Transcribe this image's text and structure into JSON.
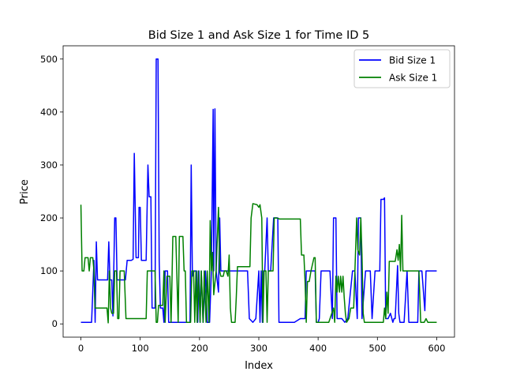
{
  "chart_data": {
    "type": "line",
    "title": "Bid Size 1 and Ask Size 1 for Time ID 5",
    "xlabel": "Index",
    "ylabel": "Price",
    "xlim": [
      -30,
      630
    ],
    "ylim": [
      -25,
      525
    ],
    "xticks": [
      0,
      100,
      200,
      300,
      400,
      500,
      600
    ],
    "yticks": [
      0,
      100,
      200,
      300,
      400,
      500
    ],
    "grid": false,
    "legend_position": "top-right",
    "series": [
      {
        "name": "Bid Size 1",
        "color": "#0000ff",
        "points": [
          [
            0,
            3
          ],
          [
            18,
            3
          ],
          [
            22,
            120
          ],
          [
            24,
            3
          ],
          [
            26,
            155
          ],
          [
            28,
            83
          ],
          [
            45,
            83
          ],
          [
            47,
            155
          ],
          [
            49,
            83
          ],
          [
            52,
            83
          ],
          [
            54,
            15
          ],
          [
            57,
            200
          ],
          [
            59,
            200
          ],
          [
            61,
            83
          ],
          [
            75,
            83
          ],
          [
            78,
            120
          ],
          [
            85,
            120
          ],
          [
            88,
            122
          ],
          [
            90,
            322
          ],
          [
            93,
            125
          ],
          [
            97,
            125
          ],
          [
            98,
            220
          ],
          [
            100,
            220
          ],
          [
            102,
            120
          ],
          [
            110,
            120
          ],
          [
            113,
            300
          ],
          [
            115,
            240
          ],
          [
            118,
            240
          ],
          [
            120,
            30
          ],
          [
            125,
            30
          ],
          [
            127,
            500
          ],
          [
            130,
            500
          ],
          [
            132,
            120
          ],
          [
            134,
            30
          ],
          [
            138,
            30
          ],
          [
            140,
            3
          ],
          [
            142,
            100
          ],
          [
            146,
            100
          ],
          [
            148,
            3
          ],
          [
            155,
            3
          ],
          [
            160,
            3
          ],
          [
            170,
            3
          ],
          [
            175,
            3
          ],
          [
            180,
            3
          ],
          [
            184,
            3
          ],
          [
            186,
            300
          ],
          [
            188,
            90
          ],
          [
            191,
            100
          ],
          [
            195,
            100
          ],
          [
            197,
            3
          ],
          [
            199,
            100
          ],
          [
            201,
            3
          ],
          [
            203,
            100
          ],
          [
            206,
            3
          ],
          [
            210,
            100
          ],
          [
            213,
            3
          ],
          [
            217,
            3
          ],
          [
            220,
            100
          ],
          [
            223,
            405
          ],
          [
            224,
            100
          ],
          [
            226,
            406
          ],
          [
            228,
            100
          ],
          [
            232,
            60
          ],
          [
            234,
            200
          ],
          [
            236,
            100
          ],
          [
            250,
            100
          ],
          [
            270,
            100
          ],
          [
            281,
            100
          ],
          [
            284,
            10
          ],
          [
            290,
            3
          ],
          [
            295,
            10
          ],
          [
            300,
            100
          ],
          [
            302,
            3
          ],
          [
            304,
            100
          ],
          [
            306,
            3
          ],
          [
            308,
            100
          ],
          [
            310,
            100
          ],
          [
            314,
            200
          ],
          [
            316,
            100
          ],
          [
            320,
            100
          ],
          [
            325,
            200
          ],
          [
            330,
            200
          ],
          [
            332,
            200
          ],
          [
            334,
            3
          ],
          [
            345,
            3
          ],
          [
            350,
            3
          ],
          [
            355,
            3
          ],
          [
            360,
            3
          ],
          [
            370,
            10
          ],
          [
            378,
            10
          ],
          [
            380,
            100
          ],
          [
            395,
            100
          ],
          [
            397,
            3
          ],
          [
            400,
            3
          ],
          [
            402,
            10
          ],
          [
            405,
            100
          ],
          [
            418,
            100
          ],
          [
            420,
            100
          ],
          [
            424,
            10
          ],
          [
            426,
            200
          ],
          [
            430,
            200
          ],
          [
            432,
            10
          ],
          [
            437,
            10
          ],
          [
            440,
            10
          ],
          [
            445,
            3
          ],
          [
            450,
            10
          ],
          [
            458,
            100
          ],
          [
            462,
            100
          ],
          [
            466,
            10
          ],
          [
            468,
            200
          ],
          [
            472,
            200
          ],
          [
            474,
            10
          ],
          [
            480,
            100
          ],
          [
            488,
            100
          ],
          [
            491,
            10
          ],
          [
            496,
            100
          ],
          [
            504,
            100
          ],
          [
            506,
            235
          ],
          [
            510,
            235
          ],
          [
            512,
            238
          ],
          [
            514,
            10
          ],
          [
            518,
            10
          ],
          [
            522,
            20
          ],
          [
            526,
            3
          ],
          [
            528,
            10
          ],
          [
            530,
            10
          ],
          [
            534,
            110
          ],
          [
            536,
            20
          ],
          [
            538,
            3
          ],
          [
            545,
            3
          ],
          [
            550,
            100
          ],
          [
            553,
            3
          ],
          [
            560,
            3
          ],
          [
            565,
            3
          ],
          [
            568,
            3
          ],
          [
            570,
            100
          ],
          [
            575,
            100
          ],
          [
            580,
            25
          ],
          [
            582,
            100
          ],
          [
            590,
            100
          ],
          [
            600,
            100
          ]
        ]
      },
      {
        "name": "Ask Size 1",
        "color": "#008000",
        "points": [
          [
            0,
            225
          ],
          [
            2,
            100
          ],
          [
            5,
            100
          ],
          [
            7,
            125
          ],
          [
            12,
            125
          ],
          [
            14,
            100
          ],
          [
            16,
            125
          ],
          [
            20,
            125
          ],
          [
            22,
            100
          ],
          [
            24,
            30
          ],
          [
            40,
            30
          ],
          [
            44,
            30
          ],
          [
            46,
            2
          ],
          [
            48,
            100
          ],
          [
            50,
            30
          ],
          [
            52,
            20
          ],
          [
            55,
            20
          ],
          [
            57,
            100
          ],
          [
            60,
            100
          ],
          [
            62,
            10
          ],
          [
            64,
            10
          ],
          [
            66,
            100
          ],
          [
            73,
            100
          ],
          [
            76,
            10
          ],
          [
            90,
            10
          ],
          [
            110,
            10
          ],
          [
            112,
            100
          ],
          [
            125,
            100
          ],
          [
            127,
            3
          ],
          [
            129,
            3
          ],
          [
            131,
            35
          ],
          [
            138,
            35
          ],
          [
            140,
            100
          ],
          [
            142,
            3
          ],
          [
            145,
            90
          ],
          [
            150,
            90
          ],
          [
            152,
            3
          ],
          [
            153,
            50
          ],
          [
            155,
            165
          ],
          [
            160,
            165
          ],
          [
            164,
            3
          ],
          [
            166,
            165
          ],
          [
            172,
            165
          ],
          [
            174,
            100
          ],
          [
            176,
            100
          ],
          [
            178,
            3
          ],
          [
            185,
            3
          ],
          [
            187,
            100
          ],
          [
            190,
            100
          ],
          [
            192,
            3
          ],
          [
            194,
            100
          ],
          [
            196,
            3
          ],
          [
            198,
            100
          ],
          [
            201,
            3
          ],
          [
            203,
            100
          ],
          [
            206,
            3
          ],
          [
            208,
            100
          ],
          [
            211,
            3
          ],
          [
            213,
            100
          ],
          [
            216,
            3
          ],
          [
            218,
            195
          ],
          [
            220,
            100
          ],
          [
            222,
            135
          ],
          [
            224,
            55
          ],
          [
            228,
            100
          ],
          [
            232,
            220
          ],
          [
            234,
            100
          ],
          [
            236,
            90
          ],
          [
            240,
            90
          ],
          [
            242,
            100
          ],
          [
            245,
            100
          ],
          [
            248,
            90
          ],
          [
            250,
            130
          ],
          [
            252,
            30
          ],
          [
            254,
            3
          ],
          [
            260,
            3
          ],
          [
            262,
            50
          ],
          [
            264,
            108
          ],
          [
            275,
            108
          ],
          [
            285,
            108
          ],
          [
            287,
            200
          ],
          [
            290,
            227
          ],
          [
            297,
            225
          ],
          [
            300,
            220
          ],
          [
            302,
            225
          ],
          [
            305,
            200
          ],
          [
            307,
            3
          ],
          [
            309,
            100
          ],
          [
            312,
            100
          ],
          [
            314,
            3
          ],
          [
            316,
            100
          ],
          [
            320,
            100
          ],
          [
            324,
            100
          ],
          [
            326,
            200
          ],
          [
            330,
            200
          ],
          [
            335,
            198
          ],
          [
            370,
            198
          ],
          [
            372,
            130
          ],
          [
            376,
            130
          ],
          [
            378,
            80
          ],
          [
            380,
            3
          ],
          [
            382,
            80
          ],
          [
            385,
            80
          ],
          [
            388,
            100
          ],
          [
            393,
            125
          ],
          [
            395,
            125
          ],
          [
            397,
            3
          ],
          [
            400,
            3
          ],
          [
            405,
            3
          ],
          [
            412,
            3
          ],
          [
            418,
            3
          ],
          [
            426,
            30
          ],
          [
            428,
            3
          ],
          [
            430,
            90
          ],
          [
            432,
            60
          ],
          [
            434,
            90
          ],
          [
            436,
            60
          ],
          [
            438,
            90
          ],
          [
            440,
            60
          ],
          [
            442,
            90
          ],
          [
            444,
            50
          ],
          [
            446,
            20
          ],
          [
            448,
            3
          ],
          [
            452,
            10
          ],
          [
            455,
            30
          ],
          [
            460,
            30
          ],
          [
            465,
            200
          ],
          [
            467,
            140
          ],
          [
            470,
            130
          ],
          [
            472,
            200
          ],
          [
            474,
            130
          ],
          [
            476,
            20
          ],
          [
            478,
            3
          ],
          [
            482,
            3
          ],
          [
            495,
            3
          ],
          [
            505,
            3
          ],
          [
            510,
            3
          ],
          [
            512,
            30
          ],
          [
            514,
            10
          ],
          [
            516,
            60
          ],
          [
            518,
            20
          ],
          [
            520,
            118
          ],
          [
            525,
            118
          ],
          [
            530,
            118
          ],
          [
            533,
            140
          ],
          [
            535,
            120
          ],
          [
            537,
            150
          ],
          [
            539,
            100
          ],
          [
            541,
            205
          ],
          [
            543,
            100
          ],
          [
            545,
            100
          ],
          [
            555,
            100
          ],
          [
            570,
            100
          ],
          [
            573,
            3
          ],
          [
            576,
            3
          ],
          [
            579,
            3
          ],
          [
            582,
            10
          ],
          [
            585,
            3
          ],
          [
            590,
            3
          ],
          [
            600,
            3
          ]
        ]
      }
    ]
  }
}
